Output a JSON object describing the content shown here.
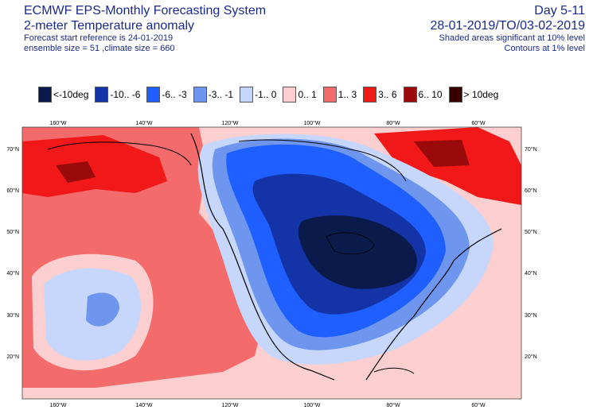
{
  "header": {
    "title": "ECMWF EPS-Monthly Forecasting System",
    "subtitle": "2-meter Temperature anomaly",
    "forecast_ref": "Forecast start reference is 24-01-2019",
    "ensemble": "ensemble size = 51  ,climate size = 660",
    "day_range": "Day 5-11",
    "date_range": "28-01-2019/TO/03-02-2019",
    "shaded_note": "Shaded areas significant at 10% level",
    "contour_note": "Contours at 1% level"
  },
  "legend": [
    {
      "label": "<-10deg",
      "color": "#0a1a4a"
    },
    {
      "label": "-10.. -6",
      "color": "#1433a6"
    },
    {
      "label": "-6.. -3",
      "color": "#1f5fff"
    },
    {
      "label": "-3.. -1",
      "color": "#6e96ef"
    },
    {
      "label": "-1..  0",
      "color": "#c7d6fb"
    },
    {
      "label": "0..  1",
      "color": "#fbcfcf"
    },
    {
      "label": "1..  3",
      "color": "#f46b6b"
    },
    {
      "label": "3..  6",
      "color": "#f01818"
    },
    {
      "label": "6.. 10",
      "color": "#9a0a0a"
    },
    {
      "label": "> 10deg",
      "color": "#3a0000"
    }
  ],
  "axes": {
    "lon_labels": [
      "160°W",
      "140°W",
      "120°W",
      "100°W",
      "80°W",
      "60°W"
    ],
    "lat_labels": [
      "70°N",
      "60°N",
      "50°N",
      "40°N",
      "30°N",
      "20°N"
    ]
  }
}
